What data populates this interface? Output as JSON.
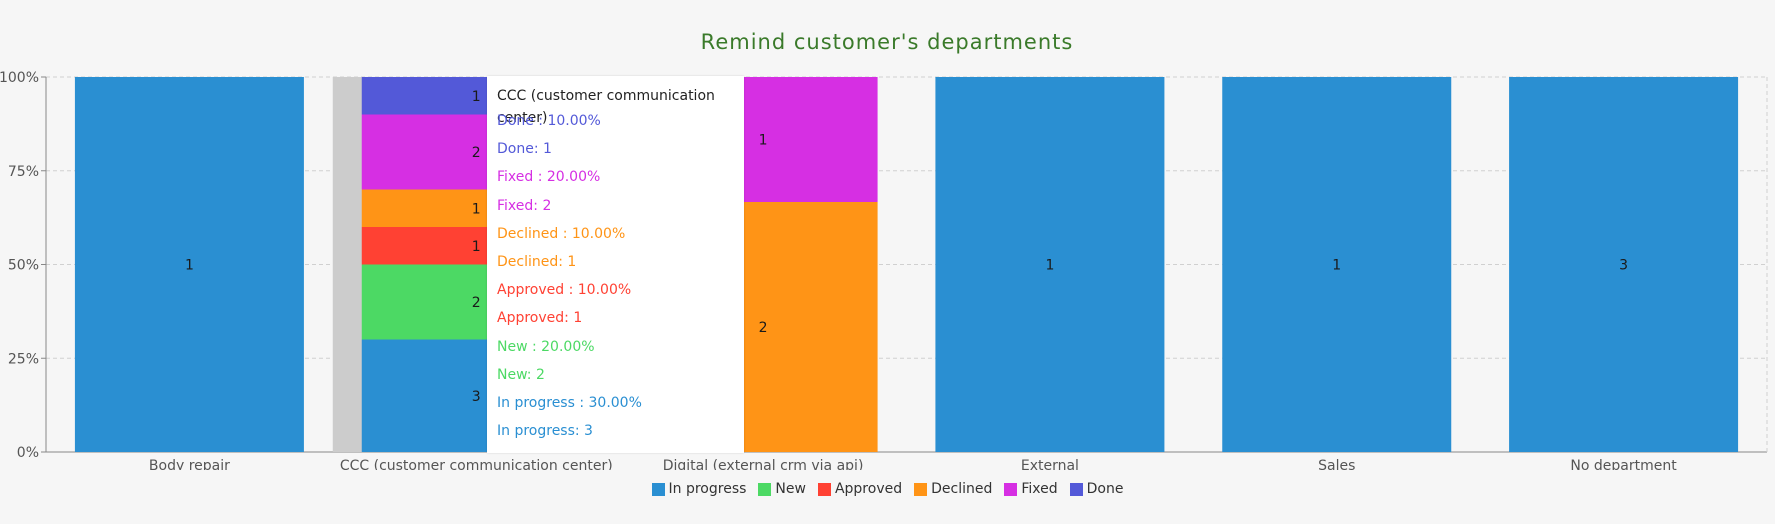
{
  "chart_data": {
    "type": "bar",
    "stacked": true,
    "normalized": true,
    "title": "Remind customer's departments",
    "xlabel": "",
    "ylabel": "",
    "ylim": [
      0,
      100
    ],
    "yticks": [
      "0%",
      "25%",
      "50%",
      "75%",
      "100%"
    ],
    "categories": [
      "Body repair",
      "CCC (customer communication center)",
      "Digital (external crm via api)",
      "External",
      "Sales",
      "No department"
    ],
    "series": [
      {
        "name": "In progress",
        "color": "#2a8fd2",
        "values": [
          1,
          3,
          0,
          1,
          1,
          3
        ]
      },
      {
        "name": "New",
        "color": "#4cd964",
        "values": [
          0,
          2,
          0,
          0,
          0,
          0
        ]
      },
      {
        "name": "Approved",
        "color": "#ff4133",
        "values": [
          0,
          1,
          0,
          0,
          0,
          0
        ]
      },
      {
        "name": "Declined",
        "color": "#ff9416",
        "values": [
          0,
          1,
          2,
          0,
          0,
          0
        ]
      },
      {
        "name": "Fixed",
        "color": "#d62fe3",
        "values": [
          0,
          2,
          1,
          0,
          0,
          0
        ]
      },
      {
        "name": "Done",
        "color": "#5359d8",
        "values": [
          0,
          1,
          0,
          0,
          0,
          0
        ]
      }
    ],
    "legend_position": "bottom-center",
    "grid": true,
    "highlighted_category": "CCC (customer communication center)"
  },
  "colors": {
    "title": "#3a7a2a",
    "axis": "#888888",
    "grid": "#d0d0d0",
    "hover_band": "#cccccc"
  },
  "tooltip": {
    "title": "CCC (customer communication center)",
    "lines": [
      {
        "text": "Done : 10.00%",
        "color": "#5359d8"
      },
      {
        "text": "Done: 1",
        "color": "#5359d8"
      },
      {
        "text": "Fixed : 20.00%",
        "color": "#d62fe3"
      },
      {
        "text": "Fixed: 2",
        "color": "#d62fe3"
      },
      {
        "text": "Declined : 10.00%",
        "color": "#ff9416"
      },
      {
        "text": "Declined: 1",
        "color": "#ff9416"
      },
      {
        "text": "Approved : 10.00%",
        "color": "#ff4133"
      },
      {
        "text": "Approved: 1",
        "color": "#ff4133"
      },
      {
        "text": "New : 20.00%",
        "color": "#4cd964"
      },
      {
        "text": "New: 2",
        "color": "#4cd964"
      },
      {
        "text": "In progress : 30.00%",
        "color": "#2a8fd2"
      },
      {
        "text": "In progress: 3",
        "color": "#2a8fd2"
      }
    ]
  }
}
